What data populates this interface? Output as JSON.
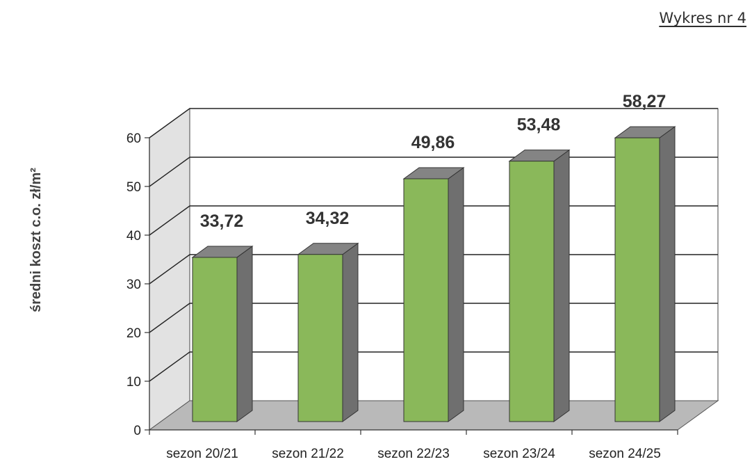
{
  "header": {
    "figure_label": "Wykres nr 4"
  },
  "chart_data": {
    "type": "bar",
    "style": "3d-column",
    "categories": [
      "sezon 20/21",
      "sezon 21/22",
      "sezon 22/23",
      "sezon 23/24",
      "sezon 24/25"
    ],
    "values": [
      33.72,
      34.32,
      49.86,
      53.48,
      58.27
    ],
    "data_labels": [
      "33,72",
      "34,32",
      "49,86",
      "53,48",
      "58,27"
    ],
    "ylabel": "średni koszt  c.o. zł/m²",
    "xlabel": "",
    "ylim": [
      0,
      60
    ],
    "yticks": [
      0,
      10,
      20,
      30,
      40,
      50,
      60
    ],
    "ytick_labels": [
      "0",
      "10",
      "20",
      "30",
      "40",
      "50",
      "60"
    ],
    "grid": true,
    "legend": "none",
    "colors": {
      "bar_front": "#8ab85a",
      "bar_side": "#6f6f6f",
      "bar_top": "#848484",
      "floor": "#b9b9b9",
      "side_wall": "#e2e2e2",
      "gridline": "#222222"
    }
  }
}
